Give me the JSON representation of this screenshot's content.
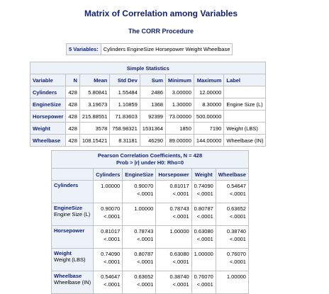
{
  "title": "Matrix of Correlation among Variables",
  "procedure": "The CORR Procedure",
  "variables_label": "5 Variables:",
  "variables_list": "Cylinders EngineSize Horsepower Weight Wheelbase",
  "simple_stats": {
    "caption": "Simple Statistics",
    "headers": [
      "Variable",
      "N",
      "Mean",
      "Std Dev",
      "Sum",
      "Minimum",
      "Maximum",
      "Label"
    ],
    "rows": [
      [
        "Cylinders",
        "428",
        "5.80841",
        "1.55484",
        "2486",
        "3.00000",
        "12.00000",
        ""
      ],
      [
        "EngineSize",
        "428",
        "3.19673",
        "1.10859",
        "1368",
        "1.30000",
        "8.30000",
        "Engine Size (L)"
      ],
      [
        "Horsepower",
        "428",
        "215.88551",
        "71.83603",
        "92399",
        "73.00000",
        "500.00000",
        ""
      ],
      [
        "Weight",
        "428",
        "3578",
        "758.98321",
        "1531364",
        "1850",
        "7190",
        "Weight (LBS)"
      ],
      [
        "Wheelbase",
        "428",
        "108.15421",
        "8.31181",
        "46290",
        "89.00000",
        "144.00000",
        "Wheelbase (IN)"
      ]
    ]
  },
  "corr": {
    "caption_line1": "Pearson Correlation Coefficients, N = 428",
    "caption_line2": "Prob > |r| under H0: Rho=0",
    "columns": [
      "Cylinders",
      "EngineSize",
      "Horsepower",
      "Weight",
      "Wheelbase"
    ],
    "rows": [
      {
        "name": "Cylinders",
        "label": "",
        "r": [
          "1.00000",
          "0.90070",
          "0.81017",
          "0.74090",
          "0.54647"
        ],
        "p": [
          "",
          "<.0001",
          "<.0001",
          "<.0001",
          "<.0001"
        ]
      },
      {
        "name": "EngineSize",
        "label": "Engine Size (L)",
        "r": [
          "0.90070",
          "1.00000",
          "0.78743",
          "0.80787",
          "0.63652"
        ],
        "p": [
          "<.0001",
          "",
          "<.0001",
          "<.0001",
          "<.0001"
        ]
      },
      {
        "name": "Horsepower",
        "label": "",
        "r": [
          "0.81017",
          "0.78743",
          "1.00000",
          "0.63080",
          "0.38740"
        ],
        "p": [
          "<.0001",
          "<.0001",
          "",
          "<.0001",
          "<.0001"
        ]
      },
      {
        "name": "Weight",
        "label": "Weight (LBS)",
        "r": [
          "0.74090",
          "0.80787",
          "0.63080",
          "1.00000",
          "0.76070"
        ],
        "p": [
          "<.0001",
          "<.0001",
          "<.0001",
          "",
          "<.0001"
        ]
      },
      {
        "name": "Wheelbase",
        "label": "Wheelbase (IN)",
        "r": [
          "0.54647",
          "0.63652",
          "0.38740",
          "0.76070",
          "1.00000"
        ],
        "p": [
          "<.0001",
          "<.0001",
          "<.0001",
          "<.0001",
          ""
        ]
      }
    ]
  }
}
